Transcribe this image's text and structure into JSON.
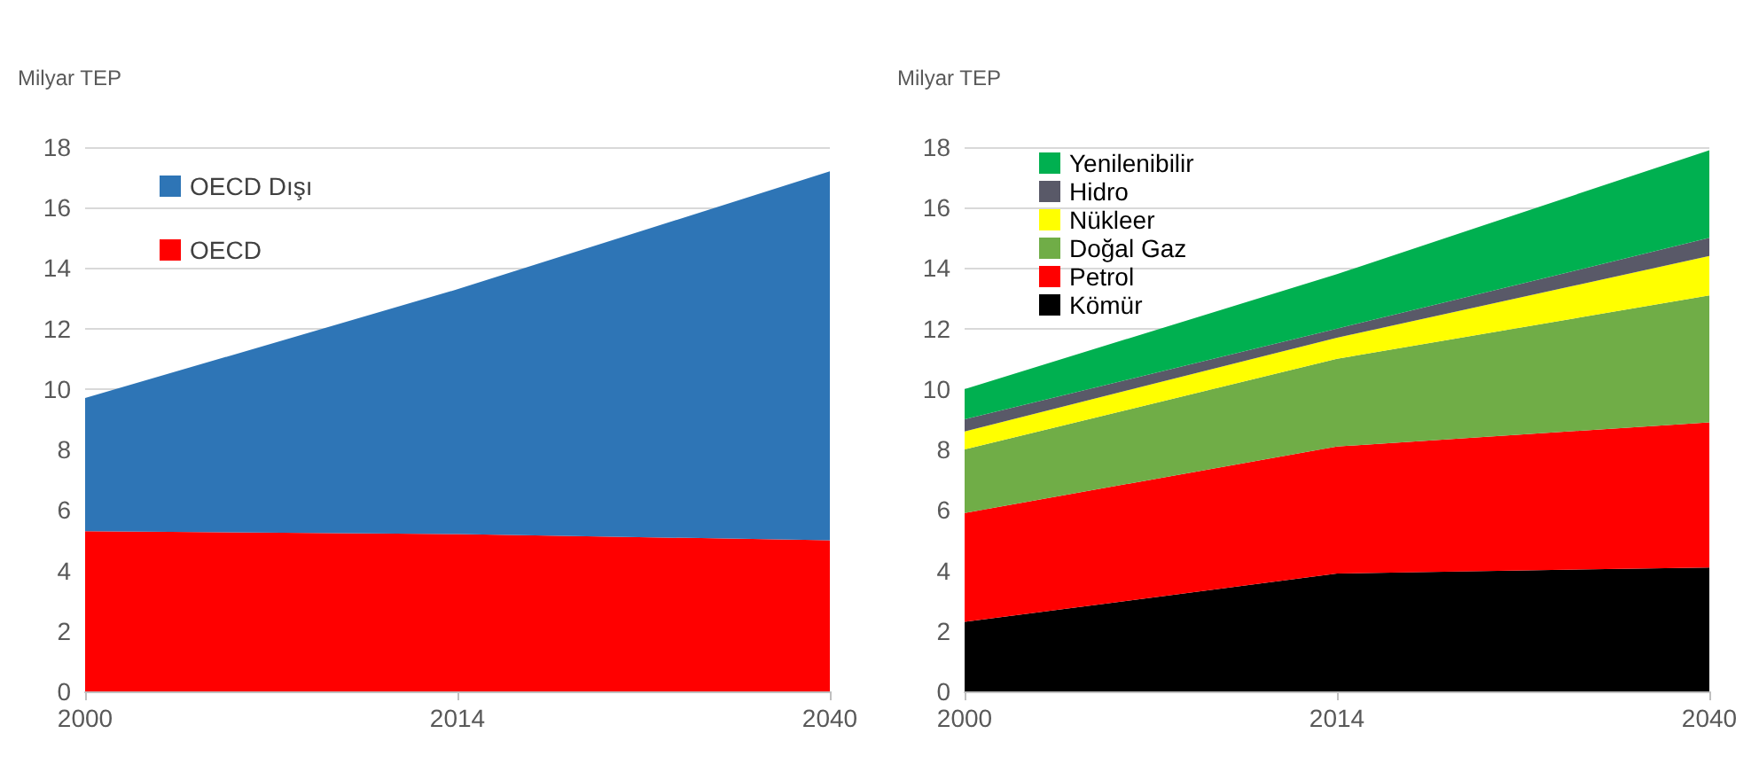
{
  "chart_data": [
    {
      "type": "area",
      "ylabel": "Milyar TEP",
      "categories": [
        "2000",
        "2014",
        "2040"
      ],
      "stacked": true,
      "ylim": [
        0,
        18
      ],
      "yticks": [
        0,
        2,
        4,
        6,
        8,
        10,
        12,
        14,
        16,
        18
      ],
      "grid": "y",
      "legend": "top left",
      "series": [
        {
          "name": "OECD",
          "color": "#ff0000",
          "values": [
            5.3,
            5.2,
            5.0
          ]
        },
        {
          "name": "OECD Dışı",
          "color": "#2e75b6",
          "values": [
            4.4,
            8.1,
            12.2
          ]
        }
      ]
    },
    {
      "type": "area",
      "ylabel": "Milyar TEP",
      "categories": [
        "2000",
        "2014",
        "2040"
      ],
      "stacked": true,
      "ylim": [
        0,
        18
      ],
      "yticks": [
        0,
        2,
        4,
        6,
        8,
        10,
        12,
        14,
        16,
        18
      ],
      "grid": "y",
      "legend": "top left",
      "series": [
        {
          "name": "Kömür",
          "color": "#000000",
          "values": [
            2.3,
            3.9,
            4.1
          ]
        },
        {
          "name": "Petrol",
          "color": "#ff0000",
          "values": [
            3.6,
            4.2,
            4.8
          ]
        },
        {
          "name": "Doğal Gaz",
          "color": "#70ad47",
          "values": [
            2.1,
            2.9,
            4.2
          ]
        },
        {
          "name": "Nükleer",
          "color": "#ffff00",
          "values": [
            0.6,
            0.7,
            1.3
          ]
        },
        {
          "name": "Hidro",
          "color": "#595968",
          "values": [
            0.4,
            0.3,
            0.6
          ]
        },
        {
          "name": "Yenilenibilir",
          "color": "#00b050",
          "values": [
            1.0,
            1.8,
            2.9
          ]
        }
      ]
    }
  ]
}
